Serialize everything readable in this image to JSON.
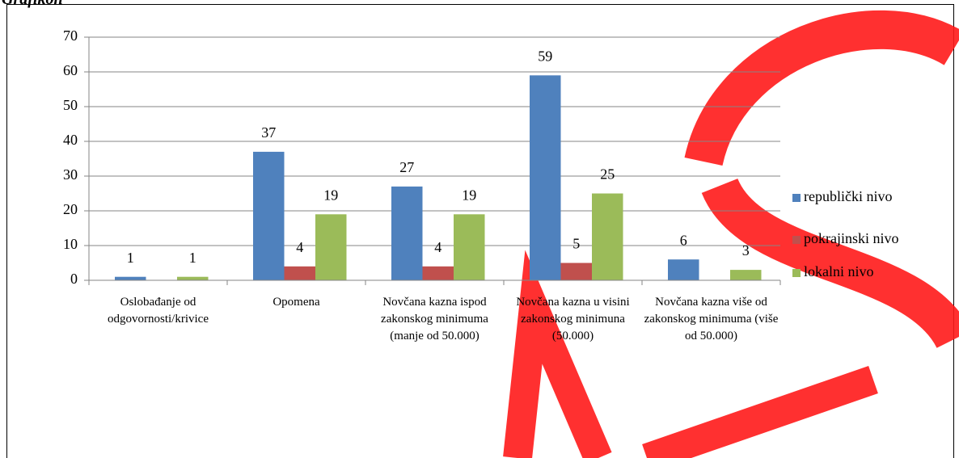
{
  "heading": "Grafikon",
  "chart_data": {
    "type": "bar",
    "categories": [
      "Oslobađanje od odgovornosti/krivice",
      "Opomena",
      "Novčana kazna ispod zakonskog minimuma (manje od 50.000)",
      "Novčana kazna u visini zakonskog minimuna (50.000)",
      "Novčana kazna više od zakonskog minimuma (više od 50.000)"
    ],
    "series": [
      {
        "name": "republički nivo",
        "color": "#4f81bd",
        "values": [
          1,
          37,
          27,
          59,
          6
        ]
      },
      {
        "name": "pokrajinski nivo",
        "color": "#c0504d",
        "values": [
          null,
          4,
          4,
          5,
          null
        ]
      },
      {
        "name": "lokalni nivo",
        "color": "#9bbb59",
        "values": [
          1,
          19,
          19,
          25,
          3
        ]
      }
    ],
    "ylim": [
      0,
      70
    ],
    "yticks": [
      0,
      10,
      20,
      30,
      40,
      50,
      60,
      70
    ],
    "grid": true,
    "legend": "right"
  }
}
